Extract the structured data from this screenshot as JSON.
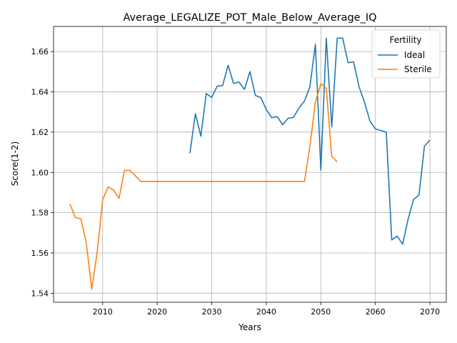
{
  "chart_data": {
    "type": "line",
    "title": "Average_LEGALIZE_POT_Male_Below_Average_IQ",
    "xlabel": "Years",
    "ylabel": "Score(1-2)",
    "xlim": [
      2001,
      2073
    ],
    "ylim": [
      1.5355,
      1.6725
    ],
    "xticks": [
      2010,
      2020,
      2030,
      2040,
      2050,
      2060,
      2070
    ],
    "yticks": [
      1.54,
      1.56,
      1.58,
      1.6,
      1.62,
      1.64,
      1.66
    ],
    "grid": true,
    "legend": {
      "title": "Fertility",
      "position": "top-right"
    },
    "series": [
      {
        "name": "Ideal",
        "color": "#1f77b4",
        "x": [
          2026,
          2027,
          2028,
          2029,
          2030,
          2031,
          2032,
          2033,
          2034,
          2035,
          2036,
          2037,
          2038,
          2039,
          2040,
          2041,
          2042,
          2043,
          2044,
          2045,
          2046,
          2047,
          2048,
          2049,
          2050,
          2051,
          2052,
          2053,
          2054,
          2055,
          2056,
          2057,
          2058,
          2059,
          2060,
          2061,
          2062,
          2063,
          2064,
          2065,
          2066,
          2067,
          2068,
          2069,
          2070
        ],
        "y": [
          1.6095,
          1.6292,
          1.618,
          1.6392,
          1.6372,
          1.6428,
          1.6432,
          1.6532,
          1.6442,
          1.6449,
          1.6412,
          1.6501,
          1.6382,
          1.6372,
          1.6312,
          1.6272,
          1.6277,
          1.6237,
          1.6269,
          1.6273,
          1.6321,
          1.6354,
          1.6427,
          1.6636,
          1.6012,
          1.6667,
          1.6226,
          1.6667,
          1.6667,
          1.6545,
          1.6549,
          1.6426,
          1.6349,
          1.6255,
          1.6216,
          1.6208,
          1.62,
          1.5665,
          1.5683,
          1.5644,
          1.5768,
          1.5865,
          1.5888,
          1.6131,
          1.616
        ]
      },
      {
        "name": "Sterile",
        "color": "#ff7f0e",
        "x": [
          2004,
          2005,
          2006,
          2007,
          2008,
          2009,
          2010,
          2011,
          2012,
          2013,
          2014,
          2015,
          2016,
          2017,
          2018,
          2019,
          2020,
          2025,
          2030,
          2035,
          2040,
          2045,
          2047,
          2048,
          2049,
          2050,
          2051,
          2052,
          2053
        ],
        "y": [
          1.5843,
          1.5776,
          1.5769,
          1.5651,
          1.542,
          1.5604,
          1.5864,
          1.5928,
          1.5912,
          1.5871,
          1.601,
          1.601,
          1.5983,
          1.5955,
          1.5955,
          1.5955,
          1.5955,
          1.5955,
          1.5955,
          1.5955,
          1.5955,
          1.5955,
          1.5955,
          1.613,
          1.635,
          1.644,
          1.6418,
          1.608,
          1.6052
        ]
      }
    ]
  }
}
